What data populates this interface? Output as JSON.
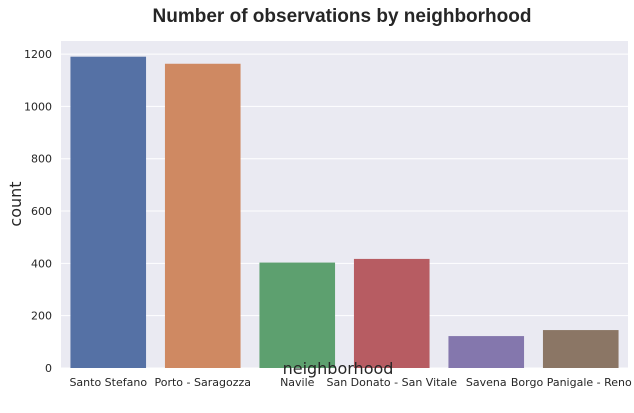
{
  "chart_data": {
    "type": "bar",
    "title": "Number of observations by neighborhood",
    "xlabel": "neighborhood",
    "ylabel": "count",
    "categories": [
      "Santo Stefano",
      "Porto - Saragozza",
      "Navile",
      "San Donato - San Vitale",
      "Savena",
      "Borgo Panigale - Reno"
    ],
    "values": [
      1190,
      1163,
      403,
      417,
      122,
      145
    ],
    "colors": [
      "#5571a5",
      "#cf8962",
      "#5da06f",
      "#b75c62",
      "#8477ad",
      "#8b7665"
    ],
    "yticks": [
      0,
      200,
      400,
      600,
      800,
      1000,
      1200
    ],
    "ylim": [
      0,
      1250
    ],
    "grid": true,
    "background": "#eaeaf2",
    "legend": "none"
  }
}
